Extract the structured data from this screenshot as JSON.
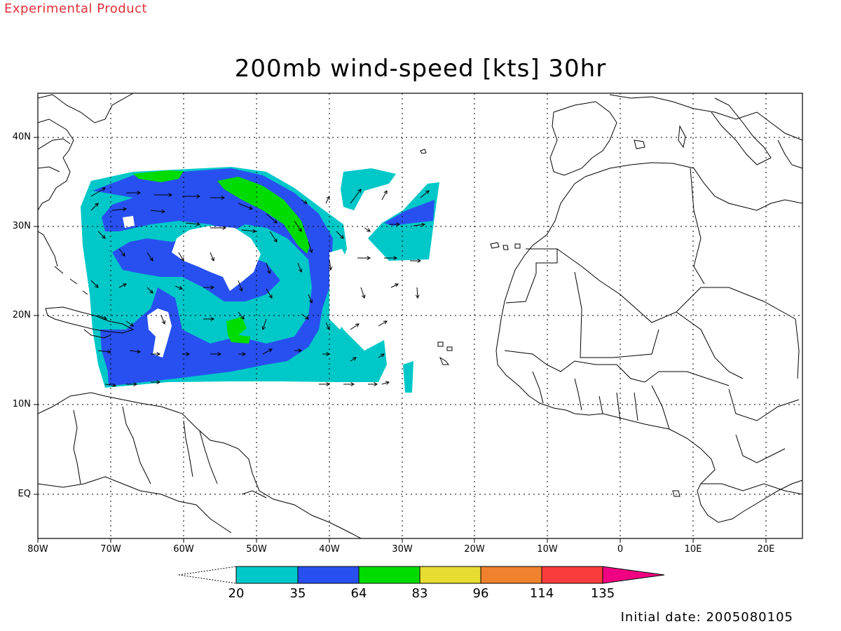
{
  "header": {
    "experimental_label": "Experimental Product",
    "title": "200mb wind-speed [kts] 30hr"
  },
  "axes": {
    "lat_labels": [
      "40N",
      "30N",
      "20N",
      "10N",
      "EQ"
    ],
    "lon_labels": [
      "80W",
      "70W",
      "60W",
      "50W",
      "40W",
      "30W",
      "20W",
      "10W",
      "0",
      "10E",
      "20E"
    ]
  },
  "colorbar": {
    "levels": [
      "20",
      "35",
      "64",
      "83",
      "96",
      "114",
      "135"
    ],
    "colors": [
      "#00c8c8",
      "#2850f0",
      "#00dc00",
      "#e6dc32",
      "#f0822d",
      "#fa3c3c",
      "#f00082"
    ]
  },
  "footer": {
    "initial_date": "Initial date: 2005080105"
  },
  "chart_data": {
    "type": "heatmap",
    "title": "200mb wind-speed [kts] 30hr",
    "x_range": [
      "80W",
      "25E"
    ],
    "y_range": [
      "5S",
      "45N"
    ],
    "grid": true,
    "contour_levels": [
      20,
      35,
      64,
      83,
      96,
      114,
      135
    ],
    "units": "kts"
  }
}
